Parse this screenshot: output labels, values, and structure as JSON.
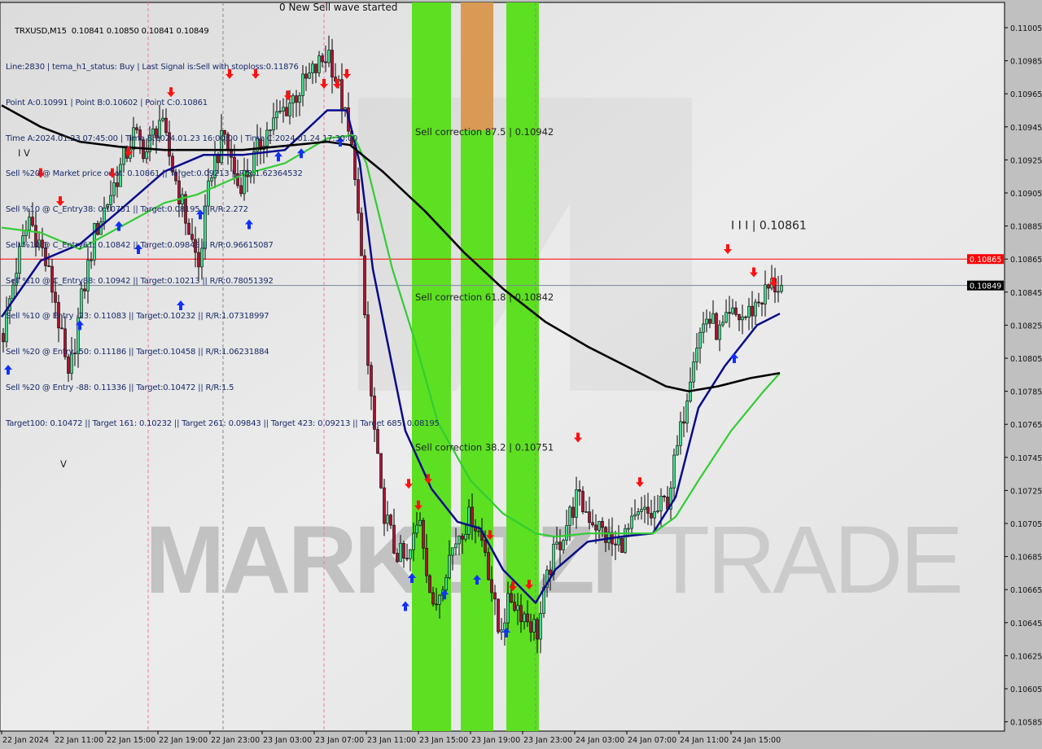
{
  "header": {
    "symbol_line": "TRXUSD,M15  0.10841 0.10850 0.10841 0.10849",
    "top_label": "0 New Sell wave started",
    "info_lines": [
      "Line:2830 | tema_h1_status: Buy | Last Signal is:Sell with stoploss:0.11876",
      "Point A:0.10991 | Point B:0.10602 | Point C:0.10861",
      "Time A:2024.01.23 07:45:00 | Time B:2024.01.23 16:00:00 | Time C:2024.01.24 17:30:00",
      "Sell %20 @ Market price or at: 0.10861 || Target:0.09213 || R/R:1.62364532",
      "Sell %10 @ C_Entry38: 0.10751 || Target:0.08195 || R/R:2.272",
      "Sell %10 @ C_Entry61: 0.10842 || Target:0.09843 || R/R:0.96615087",
      "Sell %10 @ C_Entry88: 0.10942 || Target:0.10213 || R/R:0.78051392",
      "Sell %10 @ Entry -23: 0.11083 || Target:0.10232 || R/R:1.07318997",
      "Sell %20 @ Entry -50: 0.11186 || Target:0.10458 || R/R:1.06231884",
      "Sell %20 @ Entry -88: 0.11336 || Target:0.10472 || R/R:1.5",
      "Target100: 0.10472 || Target 161: 0.10232 || Target 261: 0.09843 || Target 423: 0.09213 || Target 685: 0.08195"
    ]
  },
  "chart_data": {
    "type": "candlestick",
    "symbol": "TRXUSD",
    "timeframe": "M15",
    "ylim": [
      0.10575,
      0.11015
    ],
    "y_ticks": [
      "0.11005",
      "0.10985",
      "0.10965",
      "0.10945",
      "0.10925",
      "0.10905",
      "0.10885",
      "0.10865",
      "0.10845",
      "0.10825",
      "0.10805",
      "0.10785",
      "0.10765",
      "0.10745",
      "0.10725",
      "0.10705",
      "0.10685",
      "0.10665",
      "0.10645",
      "0.10625",
      "0.10605",
      "0.10585"
    ],
    "x_ticks": [
      {
        "label": "22 Jan 2024",
        "time": "2024-01-22 07:00"
      },
      {
        "label": "22 Jan 11:00",
        "time": "2024-01-22 11:00"
      },
      {
        "label": "22 Jan 15:00",
        "time": "2024-01-22 15:00"
      },
      {
        "label": "22 Jan 19:00",
        "time": "2024-01-22 19:00"
      },
      {
        "label": "22 Jan 23:00",
        "time": "2024-01-22 23:00"
      },
      {
        "label": "23 Jan 03:00",
        "time": "2024-01-23 03:00"
      },
      {
        "label": "23 Jan 07:00",
        "time": "2024-01-23 07:00"
      },
      {
        "label": "23 Jan 11:00",
        "time": "2024-01-23 11:00"
      },
      {
        "label": "23 Jan 15:00",
        "time": "2024-01-23 15:00"
      },
      {
        "label": "23 Jan 19:00",
        "time": "2024-01-23 19:00"
      },
      {
        "label": "23 Jan 23:00",
        "time": "2024-01-23 23:00"
      },
      {
        "label": "24 Jan 03:00",
        "time": "2024-01-24 03:00"
      },
      {
        "label": "24 Jan 07:00",
        "time": "2024-01-24 07:00"
      },
      {
        "label": "24 Jan 11:00",
        "time": "2024-01-24 11:00"
      },
      {
        "label": "24 Jan 15:00",
        "time": "2024-01-24 15:00"
      }
    ],
    "hourly_closes": [
      0.1082,
      0.1086,
      0.1089,
      0.1087,
      0.1084,
      0.1079,
      0.1084,
      0.1088,
      0.109,
      0.1092,
      0.1094,
      0.1093,
      0.1095,
      0.1092,
      0.1089,
      0.1086,
      0.1092,
      0.1094,
      0.1091,
      0.1092,
      0.1094,
      0.1095,
      0.1096,
      0.1097,
      0.1098,
      0.1099,
      0.1096,
      0.1092,
      0.108,
      0.1072,
      0.1069,
      0.1068,
      0.1071,
      0.1065,
      0.1068,
      0.107,
      0.1071,
      0.1069,
      0.1064,
      0.1066,
      0.1065,
      0.1064,
      0.1068,
      0.107,
      0.1072,
      0.1071,
      0.107,
      0.1069,
      0.107,
      0.1071,
      0.1071,
      0.1072,
      0.1076,
      0.1081,
      0.1083,
      0.1082,
      0.1083,
      0.1083,
      0.1084,
      0.10849
    ],
    "last_price": {
      "label": "0.10849",
      "value": 0.10849,
      "color": "#000000"
    },
    "level_line": {
      "label": "0.10865",
      "value": 0.10865,
      "color": "#ff0000"
    },
    "moving_averages": [
      {
        "color": "#0a0a8c",
        "points": [
          [
            "2024-01-22 07:00",
            0.1083
          ],
          [
            "2024-01-22 10:00",
            0.10864
          ],
          [
            "2024-01-22 13:00",
            0.10874
          ],
          [
            "2024-01-22 16:00",
            0.10894
          ],
          [
            "2024-01-22 19:30",
            0.10918
          ],
          [
            "2024-01-22 22:30",
            0.10928
          ],
          [
            "2024-01-23 01:30",
            0.10928
          ],
          [
            "2024-01-23 04:45",
            0.10931
          ],
          [
            "2024-01-23 08:00",
            0.10955
          ],
          [
            "2024-01-23 09:30",
            0.10955
          ],
          [
            "2024-01-23 10:30",
            0.10923
          ],
          [
            "2024-01-23 11:30",
            0.10859
          ],
          [
            "2024-01-23 13:00",
            0.108
          ],
          [
            "2024-01-23 14:00",
            0.10761
          ],
          [
            "2024-01-23 16:00",
            0.10726
          ],
          [
            "2024-01-23 18:00",
            0.10706
          ],
          [
            "2024-01-23 19:45",
            0.10702
          ],
          [
            "2024-01-23 21:30",
            0.10677
          ],
          [
            "2024-01-24 00:00",
            0.10657
          ],
          [
            "2024-01-24 01:30",
            0.10677
          ],
          [
            "2024-01-24 04:00",
            0.10694
          ],
          [
            "2024-01-24 06:30",
            0.10697
          ],
          [
            "2024-01-24 09:00",
            0.10699
          ],
          [
            "2024-01-24 10:45",
            0.10721
          ],
          [
            "2024-01-24 12:30",
            0.10775
          ],
          [
            "2024-01-24 14:30",
            0.108
          ],
          [
            "2024-01-24 17:00",
            0.10825
          ],
          [
            "2024-01-24 18:45",
            0.10832
          ]
        ]
      },
      {
        "color": "#33cc33",
        "points": [
          [
            "2024-01-22 07:00",
            0.10884
          ],
          [
            "2024-01-22 10:00",
            0.10881
          ],
          [
            "2024-01-22 13:00",
            0.10871
          ],
          [
            "2024-01-22 16:00",
            0.10884
          ],
          [
            "2024-01-22 19:30",
            0.10899
          ],
          [
            "2024-01-22 22:00",
            0.10904
          ],
          [
            "2024-01-23 01:30",
            0.10916
          ],
          [
            "2024-01-23 04:45",
            0.10923
          ],
          [
            "2024-01-23 08:00",
            0.10938
          ],
          [
            "2024-01-23 10:00",
            0.1094
          ],
          [
            "2024-01-23 11:00",
            0.10923
          ],
          [
            "2024-01-23 13:00",
            0.10859
          ],
          [
            "2024-01-23 14:45",
            0.10815
          ],
          [
            "2024-01-23 16:30",
            0.10766
          ],
          [
            "2024-01-23 19:00",
            0.10731
          ],
          [
            "2024-01-23 21:30",
            0.10711
          ],
          [
            "2024-01-24 00:00",
            0.10699
          ],
          [
            "2024-01-24 01:30",
            0.10697
          ],
          [
            "2024-01-24 04:00",
            0.10699
          ],
          [
            "2024-01-24 06:30",
            0.10699
          ],
          [
            "2024-01-24 09:00",
            0.10699
          ],
          [
            "2024-01-24 10:45",
            0.10709
          ],
          [
            "2024-01-24 12:30",
            0.10731
          ],
          [
            "2024-01-24 15:00",
            0.10761
          ],
          [
            "2024-01-24 17:30",
            0.10785
          ],
          [
            "2024-01-24 18:45",
            0.10796
          ]
        ]
      },
      {
        "color": "#000000",
        "points": [
          [
            "2024-01-22 07:00",
            0.10958
          ],
          [
            "2024-01-22 10:00",
            0.10945
          ],
          [
            "2024-01-22 13:00",
            0.10936
          ],
          [
            "2024-01-22 16:00",
            0.10933
          ],
          [
            "2024-01-22 19:30",
            0.10931
          ],
          [
            "2024-01-23 01:30",
            0.10931
          ],
          [
            "2024-01-23 08:00",
            0.10936
          ],
          [
            "2024-01-23 09:45",
            0.10934
          ],
          [
            "2024-01-23 12:15",
            0.10918
          ],
          [
            "2024-01-23 15:30",
            0.10894
          ],
          [
            "2024-01-23 18:30",
            0.10869
          ],
          [
            "2024-01-23 21:30",
            0.10847
          ],
          [
            "2024-01-24 00:45",
            0.10827
          ],
          [
            "2024-01-24 04:00",
            0.10812
          ],
          [
            "2024-01-24 07:00",
            0.108
          ],
          [
            "2024-01-24 10:00",
            0.10788
          ],
          [
            "2024-01-24 11:45",
            0.10785
          ],
          [
            "2024-01-24 14:00",
            0.10788
          ],
          [
            "2024-01-24 16:30",
            0.10793
          ],
          [
            "2024-01-24 18:45",
            0.10796
          ]
        ]
      }
    ],
    "sell_signals": [
      [
        "2024-01-22 10:00",
        0.10916
      ],
      [
        "2024-01-22 11:30",
        0.10899
      ],
      [
        "2024-01-22 15:30",
        0.10916
      ],
      [
        "2024-01-22 16:45",
        0.10929
      ],
      [
        "2024-01-22 20:00",
        0.10965
      ],
      [
        "2024-01-23 00:30",
        0.10976
      ],
      [
        "2024-01-23 02:30",
        0.10976
      ],
      [
        "2024-01-23 05:00",
        0.10963
      ],
      [
        "2024-01-23 07:45",
        0.1097
      ],
      [
        "2024-01-23 08:45",
        0.1097
      ],
      [
        "2024-01-23 09:30",
        0.10976
      ],
      [
        "2024-01-23 14:15",
        0.10728
      ],
      [
        "2024-01-23 15:00",
        0.10715
      ],
      [
        "2024-01-23 15:45",
        0.10731
      ],
      [
        "2024-01-23 20:30",
        0.10697
      ],
      [
        "2024-01-23 22:15",
        0.10666
      ],
      [
        "2024-01-23 23:30",
        0.10667
      ],
      [
        "2024-01-24 03:15",
        0.10756
      ],
      [
        "2024-01-24 08:00",
        0.10729
      ],
      [
        "2024-01-24 14:45",
        0.1087
      ],
      [
        "2024-01-24 16:45",
        0.10856
      ],
      [
        "2024-01-24 18:15",
        0.1085
      ]
    ],
    "buy_signals": [
      [
        "2024-01-22 07:30",
        0.10799
      ],
      [
        "2024-01-22 13:00",
        0.10826
      ],
      [
        "2024-01-22 16:00",
        0.10886
      ],
      [
        "2024-01-22 17:30",
        0.10872
      ],
      [
        "2024-01-22 20:45",
        0.10838
      ],
      [
        "2024-01-22 22:15",
        0.10893
      ],
      [
        "2024-01-23 02:00",
        0.10887
      ],
      [
        "2024-01-23 04:15",
        0.10928
      ],
      [
        "2024-01-23 06:00",
        0.1093
      ],
      [
        "2024-01-23 09:00",
        0.10937
      ],
      [
        "2024-01-23 14:00",
        0.10656
      ],
      [
        "2024-01-23 14:30",
        0.10673
      ],
      [
        "2024-01-23 17:00",
        0.10663
      ],
      [
        "2024-01-23 19:30",
        0.10672
      ],
      [
        "2024-01-23 21:45",
        0.1064
      ],
      [
        "2024-01-24 15:15",
        0.10806
      ]
    ],
    "zones": [
      {
        "start": "2024-01-23 14:30",
        "end": "2024-01-23 17:30",
        "color": "#5ce021"
      },
      {
        "start": "2024-01-23 18:15",
        "end": "2024-01-23 20:45",
        "color": "#5ce021",
        "top_color": "#d99a55",
        "top_from": 0.10943
      },
      {
        "start": "2024-01-23 21:45",
        "end": "2024-01-24 00:15",
        "color": "#5ce021"
      }
    ],
    "vlines": [
      {
        "time": "2024-01-22 18:15",
        "color": "#e878b0"
      },
      {
        "time": "2024-01-23 00:00",
        "color": "#888888"
      },
      {
        "time": "2024-01-23 07:45",
        "color": "#e878b0"
      },
      {
        "time": "2024-01-24 00:00",
        "color": "#888888"
      }
    ],
    "annotations": [
      {
        "text": "Sell correction 87.5 | 0.10942",
        "time": "2024-01-23 14:45",
        "price": 0.10942
      },
      {
        "text": "Sell correction 61.8 | 0.10842",
        "time": "2024-01-23 14:45",
        "price": 0.10842
      },
      {
        "text": "Sell correction 38.2 | 0.10751",
        "time": "2024-01-23 14:45",
        "price": 0.10751
      },
      {
        "text": "I I I | 0.10861",
        "time": "2024-01-24 15:00",
        "price": 0.10885
      },
      {
        "text": "I V",
        "time": "2024-01-22 08:15",
        "price": 0.10932
      },
      {
        "text": "V",
        "time": "2024-01-22 11:30",
        "price": 0.10741
      }
    ],
    "watermark": {
      "bold": "MARKETZI",
      "light": "TRADE"
    }
  }
}
